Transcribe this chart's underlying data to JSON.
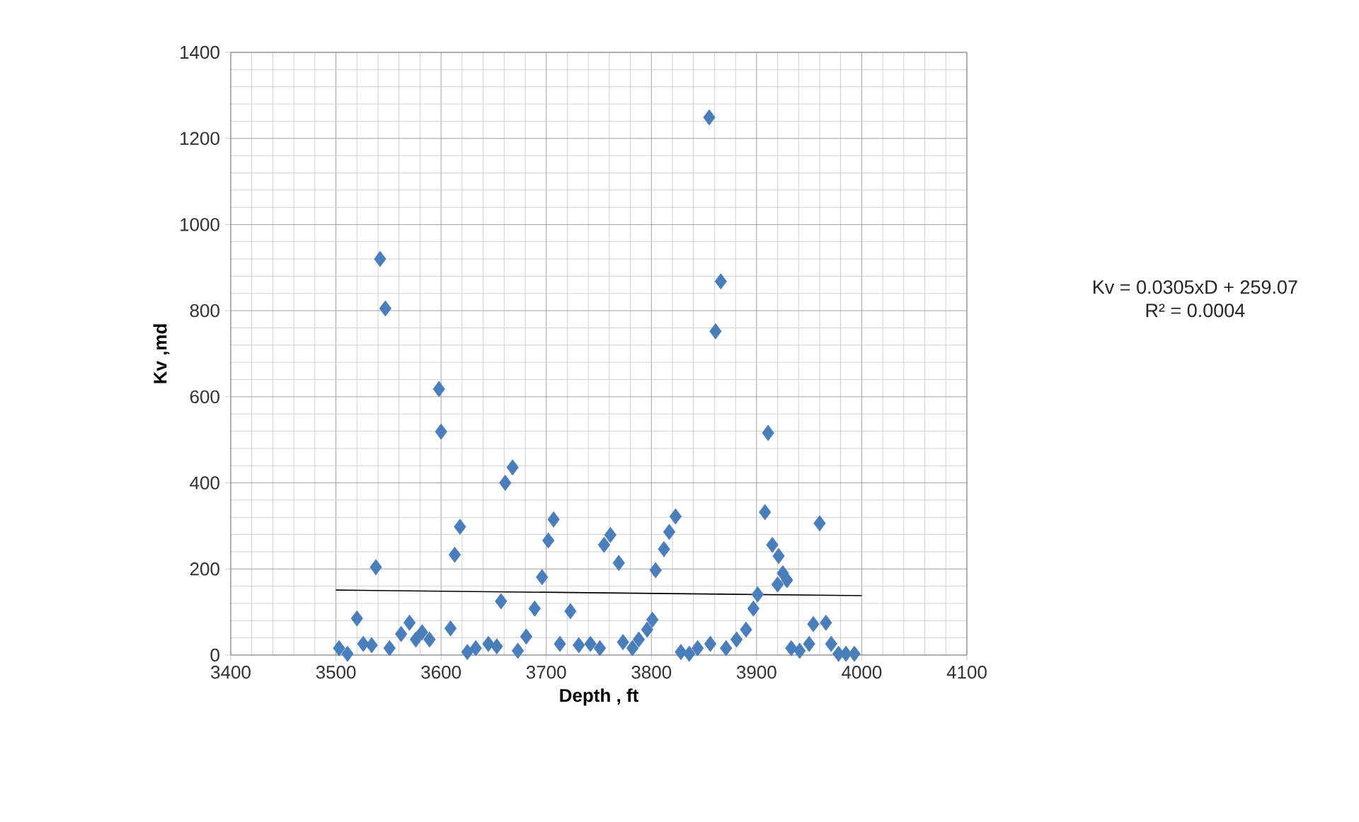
{
  "chart_data": {
    "type": "scatter",
    "xlabel": "Depth , ft",
    "ylabel": "Kv ,md",
    "xlim": [
      3400,
      4100
    ],
    "xticks": [
      3400,
      3500,
      3600,
      3700,
      3800,
      3900,
      4000,
      4100
    ],
    "ylim": [
      0,
      1400
    ],
    "yticks": [
      0,
      200,
      400,
      600,
      800,
      1000,
      1200,
      1400
    ],
    "grid": true,
    "legend": false,
    "marker": "diamond",
    "annotations": [
      "Kv = 0.0305xD + 259.07",
      "R² = 0.0004"
    ],
    "series": [
      {
        "color": "#4a7ebb",
        "x": [
          3503,
          3511,
          3520,
          3526,
          3534,
          3538,
          3542,
          3547,
          3551,
          3562,
          3570,
          3576,
          3582,
          3589,
          3598,
          3600,
          3609,
          3613,
          3618,
          3625,
          3633,
          3645,
          3653,
          3657,
          3661,
          3668,
          3673,
          3681,
          3689,
          3696,
          3702,
          3707,
          3713,
          3723,
          3731,
          3742,
          3751,
          3755,
          3761,
          3769,
          3773,
          3782,
          3788,
          3796,
          3801,
          3804,
          3812,
          3817,
          3823,
          3828,
          3836,
          3844,
          3855,
          3856,
          3861,
          3866,
          3871,
          3881,
          3890,
          3897,
          3901,
          3908,
          3911,
          3915,
          3920,
          3921,
          3925,
          3929,
          3933,
          3941,
          3950,
          3954,
          3960,
          3966,
          3971,
          3978,
          3985,
          3993
        ],
        "values": [
          16,
          3,
          85,
          26,
          23,
          204,
          920,
          805,
          16,
          49,
          75,
          36,
          53,
          36,
          618,
          519,
          62,
          233,
          298,
          7,
          16,
          26,
          20,
          125,
          400,
          436,
          10,
          43,
          108,
          181,
          266,
          315,
          26,
          102,
          23,
          26,
          16,
          256,
          279,
          214,
          30,
          16,
          36,
          59,
          82,
          197,
          246,
          286,
          322,
          7,
          3,
          16,
          1249,
          26,
          752,
          868,
          16,
          36,
          59,
          108,
          141,
          332,
          516,
          256,
          164,
          230,
          190,
          174,
          16,
          10,
          26,
          72,
          306,
          75,
          26,
          3,
          3,
          3
        ]
      },
      {
        "type": "line",
        "color": "#000000",
        "marker": "none",
        "x": [
          3500,
          4000
        ],
        "values": [
          151,
          138
        ]
      }
    ]
  }
}
